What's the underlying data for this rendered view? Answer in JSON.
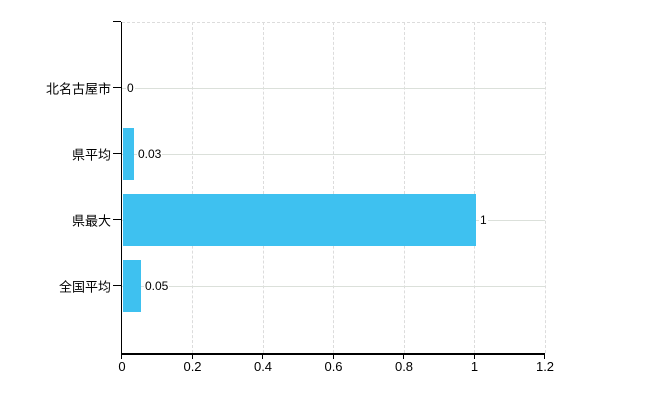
{
  "chart_data": {
    "type": "bar",
    "orientation": "horizontal",
    "title": "",
    "xlabel": "",
    "ylabel": "",
    "categories": [
      "北名古屋市",
      "県平均",
      "県最大",
      "全国平均"
    ],
    "values": [
      0,
      0.03,
      1,
      0.05
    ],
    "value_labels": [
      "0",
      "0.03",
      "1",
      "0.05"
    ],
    "x_ticks": [
      0,
      0.2,
      0.4,
      0.6,
      0.8,
      1,
      1.2
    ],
    "x_tick_labels": [
      "0",
      "0.2",
      "0.4",
      "0.6",
      "0.8",
      "1",
      "1.2"
    ],
    "xlim": [
      0,
      1.2
    ],
    "grid": true,
    "legend_visible": false,
    "colors": {
      "bar": "#3EC1F0",
      "axis": "#000000",
      "grid_horizontal": "#DBE0DA",
      "grid_vertical": "#DCDCDC",
      "text": "#000000",
      "background": "#FFFFFF"
    }
  }
}
